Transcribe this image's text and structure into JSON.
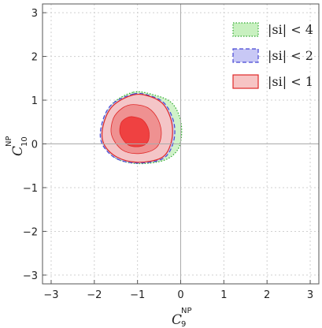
{
  "chart_data": {
    "type": "contour",
    "xlabel": {
      "base": "C",
      "sub": "9",
      "sup": "NP"
    },
    "ylabel": {
      "base": "C",
      "sub": "10",
      "sup": "NP"
    },
    "xlim": [
      -3.2,
      3.2
    ],
    "ylim": [
      -3.2,
      3.2
    ],
    "xticks": [
      -3,
      -2,
      -1,
      0,
      1,
      2,
      3
    ],
    "yticks": [
      -3,
      -2,
      -1,
      0,
      1,
      2,
      3
    ],
    "x_tick_labels": [
      "−3",
      "−2",
      "−1",
      "0",
      "1",
      "2",
      "3"
    ],
    "y_tick_labels": [
      "−3",
      "−2",
      "−1",
      "0",
      "1",
      "2",
      "3"
    ],
    "grid": true,
    "legend_position": "top-right",
    "series": [
      {
        "name": "|s_i| < 4",
        "label": "|si| < 4",
        "fill": "#c8f0c0",
        "stroke": "#2fa82f",
        "dash": "dotted",
        "contours": [
          [
            [
              -1.1,
              1.18
            ],
            [
              -0.62,
              1.12
            ],
            [
              -0.22,
              0.95
            ],
            [
              -0.02,
              0.6
            ],
            [
              0.02,
              0.2
            ],
            [
              -0.08,
              -0.15
            ],
            [
              -0.4,
              -0.38
            ],
            [
              -1.0,
              -0.45
            ],
            [
              -1.5,
              -0.33
            ],
            [
              -1.8,
              0.0
            ],
            [
              -1.82,
              0.4
            ],
            [
              -1.6,
              0.9
            ]
          ]
        ]
      },
      {
        "name": "|s_i| < 2",
        "label": "|si| < 2",
        "fill": "#c8c8f5",
        "stroke": "#4646d4",
        "dash": "dashed",
        "contours": [
          [
            [
              -1.1,
              1.14
            ],
            [
              -0.7,
              1.1
            ],
            [
              -0.35,
              0.9
            ],
            [
              -0.15,
              0.45
            ],
            [
              -0.18,
              0.0
            ],
            [
              -0.42,
              -0.34
            ],
            [
              -1.0,
              -0.44
            ],
            [
              -1.5,
              -0.33
            ],
            [
              -1.82,
              0.0
            ],
            [
              -1.84,
              0.4
            ],
            [
              -1.62,
              0.88
            ]
          ]
        ]
      },
      {
        "name": "|s_i| < 1",
        "label": "|si| < 1",
        "fill": "#f7c4c4",
        "stroke": "#e02828",
        "dash": "solid",
        "contours": [
          [
            [
              -1.1,
              1.12
            ],
            [
              -0.7,
              1.08
            ],
            [
              -0.38,
              0.88
            ],
            [
              -0.2,
              0.45
            ],
            [
              -0.23,
              0.0
            ],
            [
              -0.45,
              -0.32
            ],
            [
              -1.0,
              -0.42
            ],
            [
              -1.48,
              -0.3
            ],
            [
              -1.78,
              0.0
            ],
            [
              -1.8,
              0.4
            ],
            [
              -1.58,
              0.86
            ]
          ],
          [
            [
              -1.1,
              0.9
            ],
            [
              -0.75,
              0.82
            ],
            [
              -0.52,
              0.55
            ],
            [
              -0.45,
              0.2
            ],
            [
              -0.58,
              -0.1
            ],
            [
              -0.95,
              -0.22
            ],
            [
              -1.35,
              -0.14
            ],
            [
              -1.6,
              0.2
            ],
            [
              -1.56,
              0.58
            ],
            [
              -1.35,
              0.82
            ]
          ],
          [
            [
              -1.1,
              0.62
            ],
            [
              -0.88,
              0.55
            ],
            [
              -0.74,
              0.32
            ],
            [
              -0.76,
              0.05
            ],
            [
              -0.95,
              -0.06
            ],
            [
              -1.22,
              -0.02
            ],
            [
              -1.4,
              0.22
            ],
            [
              -1.38,
              0.48
            ],
            [
              -1.24,
              0.6
            ]
          ]
        ],
        "level_fills": [
          "#f7c4c4",
          "#ee8e8e",
          "#ee3d3d"
        ]
      }
    ]
  }
}
